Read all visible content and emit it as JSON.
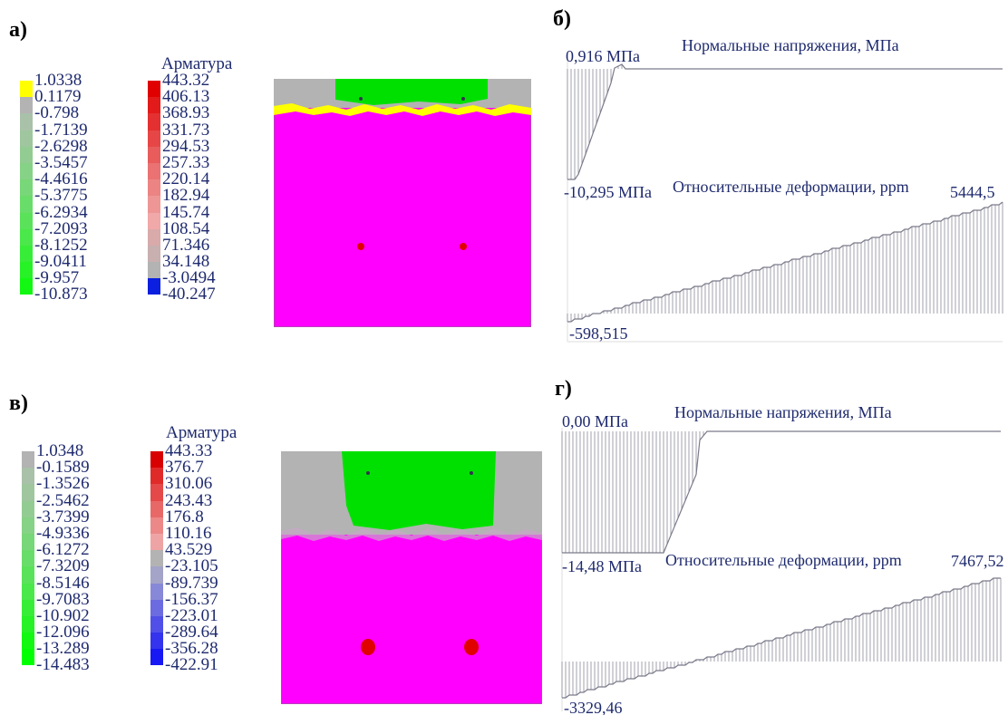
{
  "panels": {
    "a": {
      "label": "а)"
    },
    "b": {
      "label": "б)"
    },
    "v": {
      "label": "в)"
    },
    "g": {
      "label": "г)"
    }
  },
  "colors": {
    "magenta": "#ff00ff",
    "green": "#00e000",
    "gray": "#b3b3b3",
    "yellow": "#ffff00",
    "rebar": "#e00000",
    "graph_line": "#7a7a8a"
  },
  "legend_a_concrete": {
    "values": [
      "1.0338",
      "0.1179",
      "-0.798",
      "-1.7139",
      "-2.6298",
      "-3.5457",
      "-4.4616",
      "-5.3775",
      "-6.2934",
      "-7.2093",
      "-8.1252",
      "-9.0411",
      "-9.957",
      "-10.873"
    ],
    "colors": [
      "#ffff00",
      "#b3b3b3",
      "#a9c1a9",
      "#9fc69f",
      "#93cc93",
      "#86d286",
      "#78d778",
      "#69dd69",
      "#5ae25a",
      "#4ae84a",
      "#38ed38",
      "#26f226",
      "#12f812"
    ]
  },
  "legend_a_rebar": {
    "title": "Арматура",
    "values": [
      "443.32",
      "406.13",
      "368.93",
      "331.73",
      "294.53",
      "257.33",
      "220.14",
      "182.94",
      "145.74",
      "108.54",
      "71.346",
      "34.148",
      "-3.0494",
      "-40.247"
    ],
    "colors": [
      "#e00000",
      "#e21a1a",
      "#e43030",
      "#e64646",
      "#e85c5c",
      "#ea7272",
      "#ec8484",
      "#ee9696",
      "#f0a8a8",
      "#d8aaaa",
      "#c8b0b0",
      "#b3b3b3",
      "#0a1fe0"
    ]
  },
  "legend_v_concrete": {
    "values": [
      "1.0348",
      "-0.1589",
      "-1.3526",
      "-2.5462",
      "-3.7399",
      "-4.9336",
      "-6.1272",
      "-7.3209",
      "-8.5146",
      "-9.7083",
      "-10.902",
      "-12.096",
      "-13.289",
      "-14.483"
    ],
    "colors": [
      "#b3b3b3",
      "#a9c1a9",
      "#9fc69f",
      "#93cc93",
      "#86d286",
      "#78d778",
      "#69dd69",
      "#5ae25a",
      "#4ae84a",
      "#38ed38",
      "#26f226",
      "#12f812",
      "#00ff00"
    ]
  },
  "legend_v_rebar": {
    "title": "Арматура",
    "values": [
      "443.33",
      "376.7",
      "310.06",
      "243.43",
      "176.8",
      "110.16",
      "43.529",
      "-23.105",
      "-89.739",
      "-156.37",
      "-223.01",
      "-289.64",
      "-356.28",
      "-422.91"
    ],
    "colors": [
      "#d80000",
      "#e02a2a",
      "#e44848",
      "#e86868",
      "#ec8888",
      "#eea4a4",
      "#b3b3b3",
      "#a4a4c8",
      "#8888d8",
      "#6c6ce0",
      "#5050e8",
      "#3434ee",
      "#1818f4"
    ]
  },
  "graph_b": {
    "stress_title": "Нормальные напряжения, МПа",
    "stress_max": "0,916 МПа",
    "stress_min": "-10,295 МПа",
    "strain_title": "Относительные деформации, ppm",
    "strain_max": "5444,5",
    "strain_min": "-598,515"
  },
  "graph_g": {
    "stress_title": "Нормальные напряжения, МПа",
    "stress_max": "0,00 МПа",
    "stress_min": "-14,48 МПа",
    "strain_title": "Относительные деформации, ppm",
    "strain_max": "7467,52",
    "strain_min": "-3329,46"
  }
}
